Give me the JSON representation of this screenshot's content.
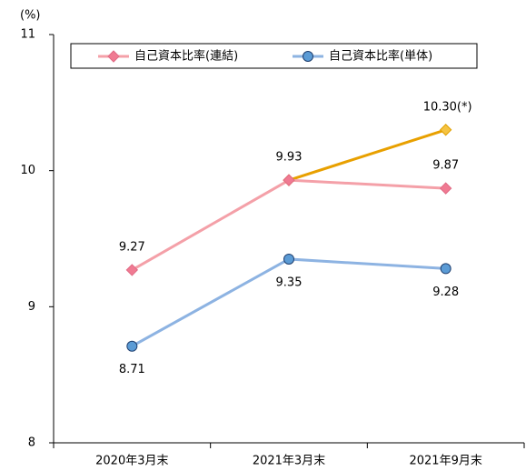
{
  "chart_data": {
    "type": "line",
    "y_label": "(%)",
    "categories": [
      "2020年3月末",
      "2021年3月末",
      "2021年9月末"
    ],
    "series": [
      {
        "name": "自己資本比率(連結)",
        "color": "#f4a0a8",
        "marker": "diamond",
        "marker_color": "#f07a92",
        "label_position": "above",
        "values": [
          9.27,
          9.93,
          9.87
        ]
      },
      {
        "name": "自己資本比率(単体)",
        "color": "#8db3e2",
        "marker": "circle",
        "marker_color": "#5b9bd5",
        "label_position": "below",
        "values": [
          8.71,
          9.35,
          9.28
        ]
      },
      {
        "color": "#e8a000",
        "marker": "diamond",
        "marker_color": "#f5c342",
        "label_position": "above",
        "values": [
          null,
          9.93,
          10.3
        ],
        "value_labels": [
          null,
          null,
          "10.30(*)"
        ]
      }
    ],
    "ylim": [
      8,
      11
    ],
    "yticks": [
      8,
      9,
      10,
      11
    ],
    "legend": "top"
  }
}
